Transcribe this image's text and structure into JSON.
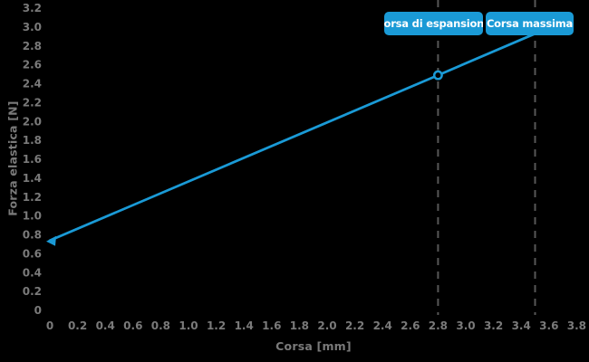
{
  "chart_data": {
    "type": "line",
    "title": "",
    "xlabel": "Corsa [mm]",
    "ylabel": "Forza elastica [N]",
    "xlim": [
      0,
      3.8
    ],
    "ylim": [
      0,
      3.2
    ],
    "grid": false,
    "legend": null,
    "x_tick_labels": [
      "0",
      "0.2",
      "0.4",
      "0.6",
      "0.8",
      "1.0",
      "1.2",
      "1.4",
      "1.6",
      "1.8",
      "2.0",
      "2.2",
      "2.4",
      "2.6",
      "2.8",
      "3.0",
      "3.2",
      "3.4",
      "3.6",
      "3.8"
    ],
    "y_tick_labels": [
      "0",
      "0.2",
      "0.4",
      "0.6",
      "0.8",
      "1.0",
      "1.2",
      "1.4",
      "1.6",
      "1.8",
      "2.0",
      "2.2",
      "2.4",
      "2.6",
      "2.8",
      "3.0",
      "3.2"
    ],
    "series": [
      {
        "name": "Forza elastica",
        "x": [
          0,
          2.8,
          3.5
        ],
        "y": [
          0.74,
          2.49,
          2.93
        ]
      }
    ],
    "markers": [
      {
        "x": 0,
        "y": 0.74,
        "shape": "triangle-left"
      },
      {
        "x": 2.8,
        "y": 2.49,
        "shape": "open-circle"
      }
    ],
    "reference_lines": [
      {
        "x": 2.8,
        "label": "Corsa di espansione"
      },
      {
        "x": 3.5,
        "label": "Corsa massima"
      }
    ]
  },
  "colors": {
    "background": "#000000",
    "line": "#1a9ad6",
    "tooltip_background": "#1a9ad6",
    "tooltip_text": "#ffffff",
    "tick_label": "#7a7a7a",
    "axis_title": "#7a7a7a",
    "reference_line": "#575757"
  }
}
